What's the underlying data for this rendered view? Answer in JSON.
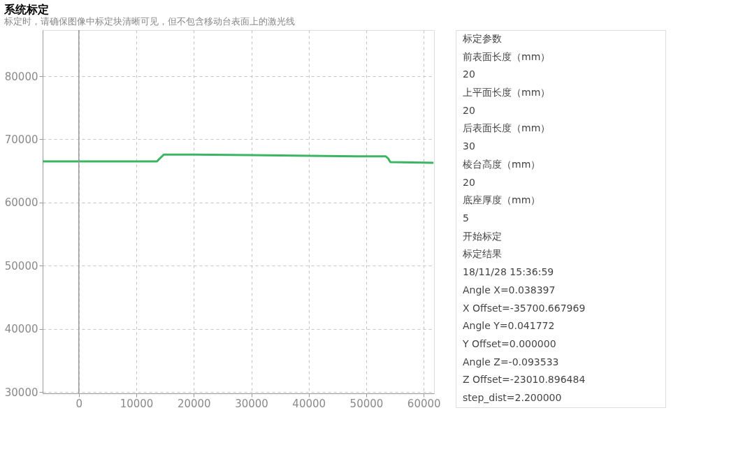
{
  "chart_data": {
    "type": "line",
    "title": "系统标定",
    "subtitle": "标定时，请确保图像中标定块清晰可见，但不包含移动台表面上的激光线",
    "x": [
      -6300,
      0,
      5000,
      10000,
      13600,
      14000,
      14800,
      20000,
      30000,
      40000,
      50000,
      53400,
      53800,
      54200,
      61700
    ],
    "series": [
      {
        "color": "#3cb563",
        "values": [
          66500,
          66500,
          66500,
          66500,
          66500,
          66900,
          67600,
          67600,
          67500,
          67400,
          67300,
          67300,
          67000,
          66400,
          66300
        ]
      }
    ],
    "xlim": [
      -6300,
      61800
    ],
    "ylim": [
      29800,
      87300
    ],
    "xticks": [
      0,
      10000,
      20000,
      30000,
      40000,
      50000,
      60000
    ],
    "yticks": [
      30000,
      40000,
      50000,
      60000,
      70000,
      80000
    ],
    "grid": true,
    "marker": "none",
    "line_style": "solid",
    "legend": false,
    "annotations": [
      "标定参数",
      "前表面长度（mm）",
      "20",
      "上平面长度（mm）",
      "20",
      "后表面长度（mm）",
      "30",
      "棱台高度（mm）",
      "20",
      "底座厚度（mm）",
      "5",
      "开始标定",
      "标定结果",
      "18/11/28 15:36:59",
      "Angle X=0.038397",
      "X Offset=-35700.667969",
      "Angle Y=0.041772",
      "Y Offset=0.000000",
      "Angle Z=-0.093533",
      "Z Offset=-23010.896484",
      "step_dist=2.200000"
    ]
  }
}
